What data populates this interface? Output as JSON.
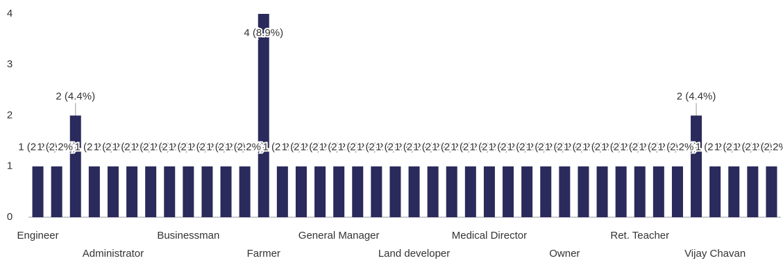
{
  "chart_data": {
    "type": "bar",
    "categories": [
      "Engineer",
      null,
      null,
      null,
      "Administrator",
      null,
      null,
      null,
      "Businessman",
      null,
      null,
      null,
      "Farmer",
      null,
      null,
      null,
      "General Manager",
      null,
      null,
      null,
      "Land developer",
      null,
      null,
      null,
      "Medical Director",
      null,
      null,
      null,
      "Owner",
      null,
      null,
      null,
      "Ret. Teacher",
      null,
      null,
      null,
      "Vijay Chavan",
      null,
      null,
      null
    ],
    "values": [
      1,
      1,
      2,
      1,
      1,
      1,
      1,
      1,
      1,
      1,
      1,
      1,
      4,
      1,
      1,
      1,
      1,
      1,
      1,
      1,
      1,
      1,
      1,
      1,
      1,
      1,
      1,
      1,
      1,
      1,
      1,
      1,
      1,
      1,
      1,
      2,
      1,
      1,
      1,
      1
    ],
    "value_labels": [
      "1 (2.2%)",
      "1 (2.2%)",
      "2 (4.4%)",
      "1 (2.2%)",
      "1 (2.2%)",
      "1 (2.2%)",
      "1 (2.2%)",
      "1 (2.2%)",
      "1 (2.2%)",
      "1 (2.2%)",
      "1 (2.2%)",
      "1 (2.2%)",
      "4 (8.9%)",
      "1 (2.2%)",
      "1 (2.2%)",
      "1 (2.2%)",
      "1 (2.2%)",
      "1 (2.2%)",
      "1 (2.2%)",
      "1 (2.2%)",
      "1 (2.2%)",
      "1 (2.2%)",
      "1 (2.2%)",
      "1 (2.2%)",
      "1 (2.2%)",
      "1 (2.2%)",
      "1 (2.2%)",
      "1 (2.2%)",
      "1 (2.2%)",
      "1 (2.2%)",
      "1 (2.2%)",
      "1 (2.2%)",
      "1 (2.2%)",
      "1 (2.2%)",
      "1 (2.2%)",
      "2 (4.4%)",
      "1 (2.2%)",
      "1 (2.2%)",
      "1 (2.2%)",
      "1 (2.2%)"
    ],
    "color": "#2a2a5c",
    "ylim": [
      0,
      4
    ],
    "yticks": [
      0,
      1,
      2,
      3,
      4
    ]
  }
}
